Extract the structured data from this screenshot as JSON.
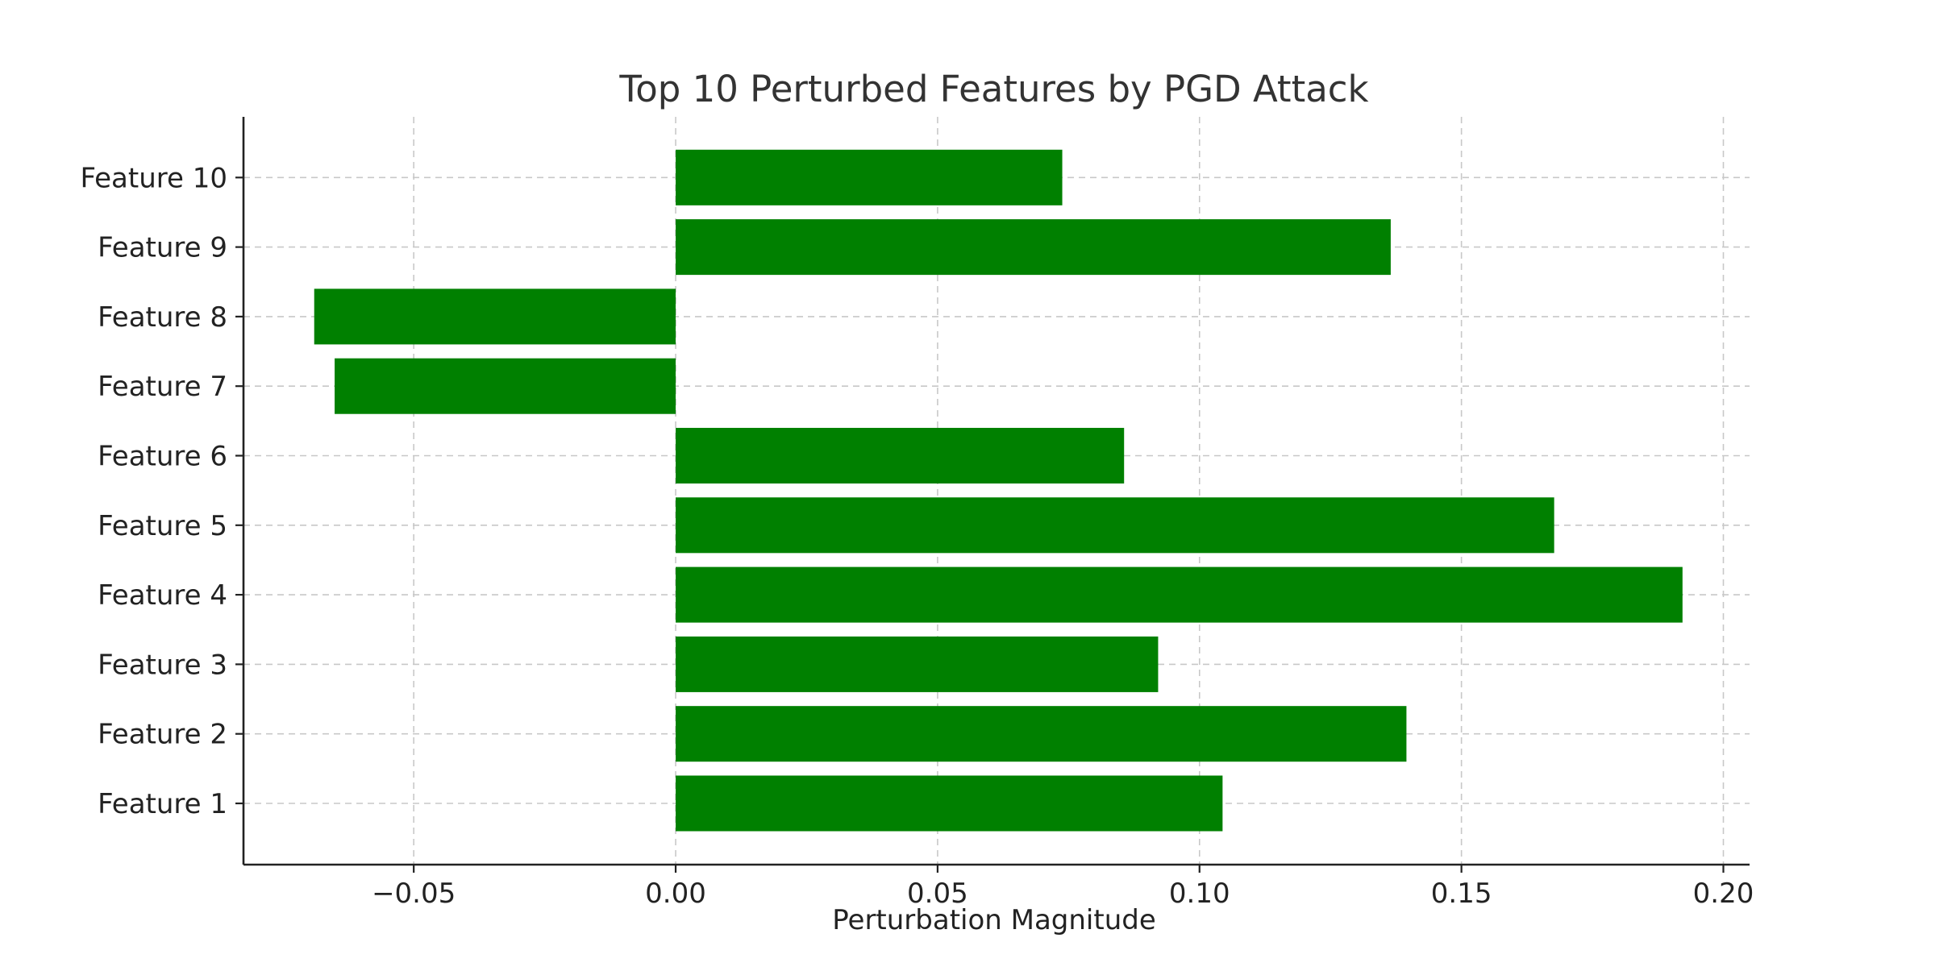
{
  "chart_data": {
    "type": "bar",
    "orientation": "horizontal",
    "title": "Top 10 Perturbed Features by PGD Attack",
    "xlabel": "Perturbation Magnitude",
    "ylabel": "",
    "categories": [
      "Feature 1",
      "Feature 2",
      "Feature 3",
      "Feature 4",
      "Feature 5",
      "Feature 6",
      "Feature 7",
      "Feature 8",
      "Feature 9",
      "Feature 10"
    ],
    "values": [
      0.1044,
      0.1395,
      0.0921,
      0.1922,
      0.1677,
      0.0856,
      -0.0651,
      -0.069,
      0.1365,
      0.0738
    ],
    "xlim": [
      -0.0825,
      0.205
    ],
    "xticks": [
      -0.05,
      0.0,
      0.05,
      0.1,
      0.15,
      0.2
    ],
    "xtick_labels": [
      "−0.05",
      "0.00",
      "0.05",
      "0.10",
      "0.15",
      "0.20"
    ],
    "bar_color": "#008000",
    "grid": true,
    "legend": "none"
  }
}
